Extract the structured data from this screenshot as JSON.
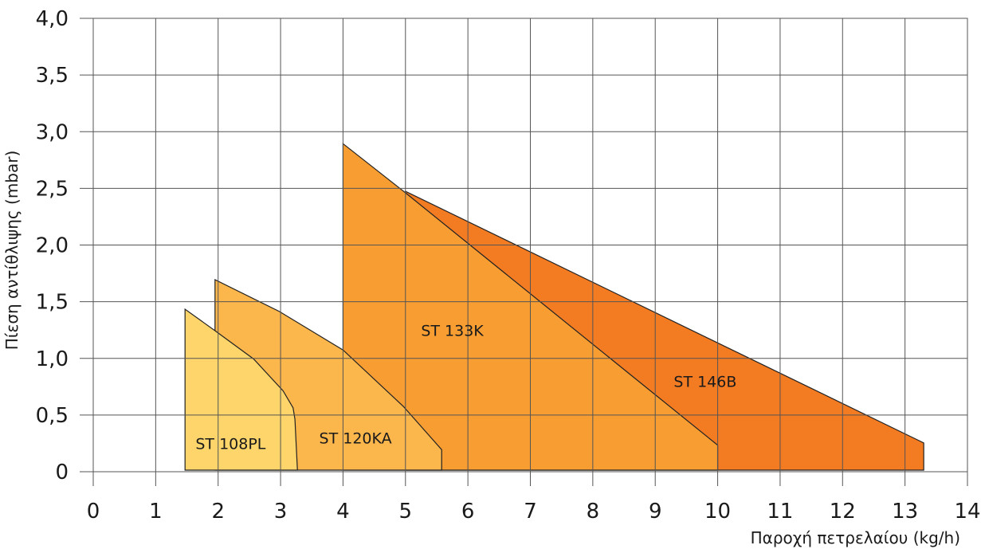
{
  "chart_data": {
    "type": "area",
    "title": "",
    "xlabel": "Παροχή πετρελαίου (kg/h)",
    "ylabel": "Πίεση αντίθλιψης (mbar)",
    "xlim": [
      0,
      14
    ],
    "ylim": [
      0,
      4.0
    ],
    "x_ticks": [
      "0",
      "1",
      "2",
      "3",
      "4",
      "5",
      "6",
      "7",
      "8",
      "9",
      "10",
      "11",
      "12",
      "13",
      "14"
    ],
    "y_ticks": [
      "0",
      "0,5",
      "1,0",
      "1,5",
      "2,0",
      "2,5",
      "3,0",
      "3,5",
      "4,0"
    ],
    "grid": true,
    "series": [
      {
        "name": "ST 146B",
        "color": "#f37b22",
        "points": [
          [
            5,
            0
          ],
          [
            5,
            2.46
          ],
          [
            13.3,
            0.24
          ],
          [
            13.3,
            0
          ]
        ]
      },
      {
        "name": "ST 133K",
        "color": "#f79d32",
        "points": [
          [
            4,
            0
          ],
          [
            4,
            2.88
          ],
          [
            4.97,
            2.46
          ],
          [
            10,
            0.22
          ],
          [
            10,
            0
          ]
        ]
      },
      {
        "name": "ST 120KA",
        "color": "#fbb64c",
        "points": [
          [
            1.95,
            0
          ],
          [
            1.95,
            1.68
          ],
          [
            2.98,
            1.4
          ],
          [
            4.0,
            1.06
          ],
          [
            4.97,
            0.56
          ],
          [
            5.58,
            0.18
          ],
          [
            5.58,
            0
          ]
        ]
      },
      {
        "name": "ST 108PL",
        "color": "#fdd56a",
        "points": [
          [
            1.47,
            0
          ],
          [
            1.47,
            1.42
          ],
          [
            1.95,
            1.23
          ],
          [
            2.57,
            0.98
          ],
          [
            3.04,
            0.7
          ],
          [
            3.2,
            0.55
          ],
          [
            3.23,
            0.45
          ],
          [
            3.27,
            0
          ]
        ]
      }
    ]
  }
}
